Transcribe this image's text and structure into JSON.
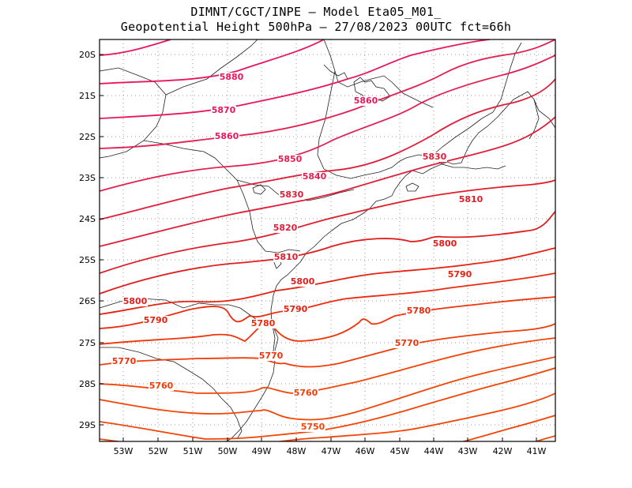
{
  "header": {
    "line1": "DIMNT/CGCT/INPE –  Model Eta05_M01_",
    "line2": "Geopotential Height 500hPa –  27/08/2023 00UTC fct=66h"
  },
  "axes": {
    "lat_ticks": [
      "20S",
      "21S",
      "22S",
      "23S",
      "24S",
      "25S",
      "26S",
      "27S",
      "28S",
      "29S"
    ],
    "lon_ticks": [
      "53W",
      "52W",
      "51W",
      "50W",
      "49W",
      "48W",
      "47W",
      "46W",
      "45W",
      "44W",
      "43W",
      "42W",
      "41W"
    ]
  },
  "contours": [
    {
      "value": "5880",
      "color": "#e8175d"
    },
    {
      "value": "5870",
      "color": "#e8175d"
    },
    {
      "value": "5860",
      "color": "#e8175d"
    },
    {
      "value": "5850",
      "color": "#e41e50"
    },
    {
      "value": "5840",
      "color": "#e41e50"
    },
    {
      "value": "5830",
      "color": "#e01e3a"
    },
    {
      "value": "5820",
      "color": "#e01e3a"
    },
    {
      "value": "5810",
      "color": "#e01e2a"
    },
    {
      "value": "5800",
      "color": "#e01e1e"
    },
    {
      "value": "5790",
      "color": "#e82010"
    },
    {
      "value": "5780",
      "color": "#ee2a0e"
    },
    {
      "value": "5770",
      "color": "#f0340a"
    },
    {
      "value": "5760",
      "color": "#f23c08"
    },
    {
      "value": "5750",
      "color": "#f44406"
    }
  ],
  "contour_labels": [
    {
      "text": "5880",
      "level": 0
    },
    {
      "text": "5860",
      "level": 2
    },
    {
      "text": "5870",
      "level": 1
    },
    {
      "text": "5860",
      "level": 2
    },
    {
      "text": "5850",
      "level": 3
    },
    {
      "text": "5840",
      "level": 4
    },
    {
      "text": "5830",
      "level": 5
    },
    {
      "text": "5830",
      "level": 5
    },
    {
      "text": "5810",
      "level": 7
    },
    {
      "text": "5820",
      "level": 6
    },
    {
      "text": "5810",
      "level": 7
    },
    {
      "text": "5800",
      "level": 8
    },
    {
      "text": "5800",
      "level": 8
    },
    {
      "text": "5790",
      "level": 9
    },
    {
      "text": "5800",
      "level": 8
    },
    {
      "text": "5790",
      "level": 9
    },
    {
      "text": "5790",
      "level": 9
    },
    {
      "text": "5780",
      "level": 10
    },
    {
      "text": "5780",
      "level": 10
    },
    {
      "text": "5770",
      "level": 11
    },
    {
      "text": "5770",
      "level": 11
    },
    {
      "text": "5770",
      "level": 11
    },
    {
      "text": "5760",
      "level": 12
    },
    {
      "text": "5760",
      "level": 12
    },
    {
      "text": "5750",
      "level": 13
    }
  ],
  "colors": {
    "grid": "#9a9a9a",
    "coast": "#222222",
    "frame": "#000000"
  }
}
